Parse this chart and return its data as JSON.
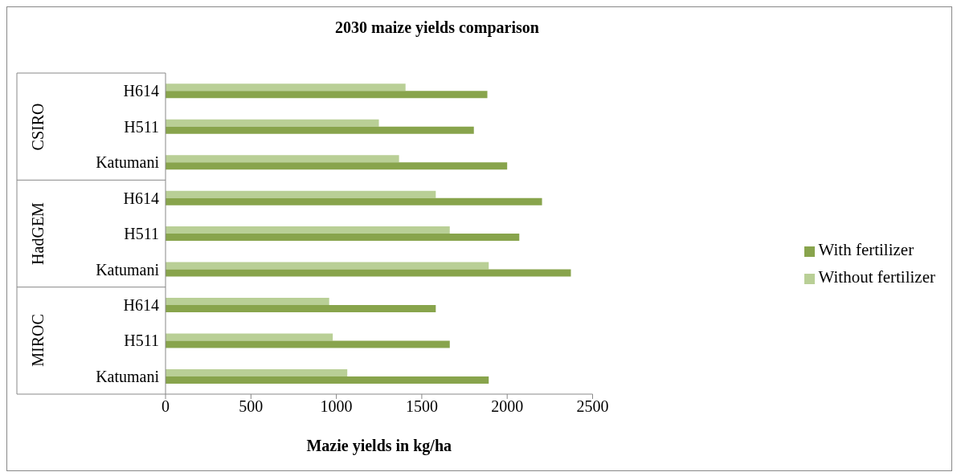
{
  "chart_data": {
    "type": "bar",
    "orientation": "horizontal",
    "title": "2030 maize yields comparison",
    "xlabel": "Mazie yields in kg/ha",
    "categories": [
      "H614",
      "H511",
      "Katumani",
      "H614",
      "H511",
      "Katumani",
      "H614",
      "H511",
      "Katumani"
    ],
    "annotations": [
      "CSIRO",
      "HadGEM",
      "MIROC"
    ],
    "series": [
      {
        "name": "Without fertilizer",
        "color": "#b9cf96",
        "values": [
          1405,
          1249,
          1367,
          1582,
          1664,
          1892,
          958,
          979,
          1064
        ]
      },
      {
        "name": "With fertilizer",
        "color": "#88a44c",
        "values": [
          1884,
          1805,
          2000,
          2204,
          2071,
          2373,
          1582,
          1664,
          1892
        ]
      }
    ],
    "xlim": [
      0,
      2500
    ],
    "xticks": [
      0,
      500,
      1000,
      1500,
      2000,
      2500
    ],
    "grid": false,
    "legend": "right"
  }
}
